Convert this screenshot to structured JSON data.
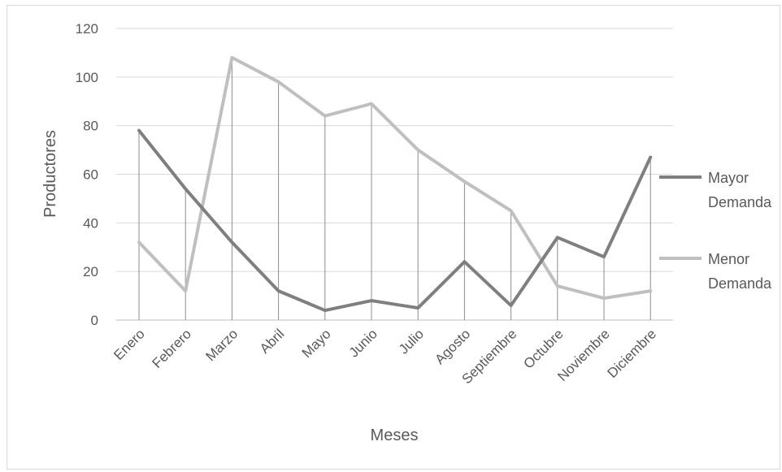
{
  "chart_data": {
    "type": "line",
    "title": "",
    "xlabel": "Meses",
    "ylabel": "Productores",
    "ylim": [
      0,
      120
    ],
    "yticks": [
      0,
      20,
      40,
      60,
      80,
      100,
      120
    ],
    "grid": true,
    "legend_position": "right",
    "categories": [
      "Enero",
      "Febrero",
      "Marzo",
      "Abril",
      "Mayo",
      "Junio",
      "Julio",
      "Agosto",
      "Septiembre",
      "Octubre",
      "Noviembre",
      "Diciembre"
    ],
    "series": [
      {
        "name": "Mayor Demanda",
        "legend_lines": [
          "Mayor",
          "Demanda"
        ],
        "color": "#7f7f7f",
        "values": [
          78,
          54,
          32,
          12,
          4,
          8,
          5,
          24,
          6,
          34,
          26,
          67
        ]
      },
      {
        "name": "Menor Demanda",
        "legend_lines": [
          "Menor",
          "Demanda"
        ],
        "color": "#bfbfbf",
        "values": [
          32,
          12,
          108,
          98,
          84,
          89,
          70,
          57,
          45,
          14,
          9,
          12
        ]
      }
    ]
  }
}
